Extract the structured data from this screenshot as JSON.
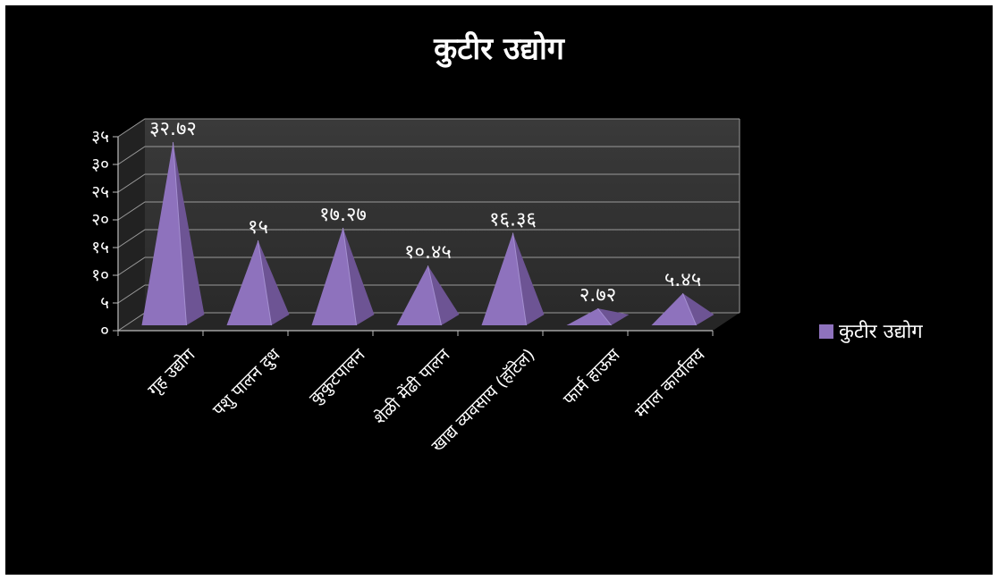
{
  "chart_data": {
    "type": "bar",
    "title": "कुटीर उद्योग",
    "categories": [
      "गृह उद्योग",
      "पशु पालन दुध",
      "कुकुटपालन",
      "शेळी मेंढी पालन",
      "खाद्य व्यवसाय (हॉटेल)",
      "फार्म हाऊस",
      "मंगल कार्यालय"
    ],
    "series": [
      {
        "name": "कुटीर उद्योग",
        "values": [
          32.72,
          15,
          17.27,
          10.45,
          16.36,
          2.72,
          5.45
        ],
        "data_labels": [
          "३२.७२",
          "१५",
          "१७.२७",
          "१०.४५",
          "१६.३६",
          "२.७२",
          "५.४५"
        ],
        "color": "#8e72bd"
      }
    ],
    "ylim": [
      0,
      35
    ],
    "yticks": [
      0,
      5,
      10,
      15,
      20,
      25,
      30,
      35
    ],
    "ytick_labels": [
      "०",
      "५",
      "१०",
      "१५",
      "२०",
      "२५",
      "३०",
      "३५"
    ],
    "xlabel": "",
    "ylabel": "",
    "grid": true,
    "legend": "right",
    "mark_shape": "pyramid-3d",
    "colors": {
      "background": "#000000",
      "wall": "#333333",
      "grid": "#9a9a9a",
      "text": "#ffffff"
    }
  }
}
